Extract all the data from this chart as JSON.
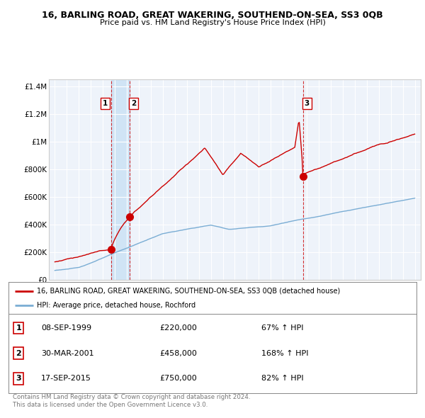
{
  "title": "16, BARLING ROAD, GREAT WAKERING, SOUTHEND-ON-SEA, SS3 0QB",
  "subtitle": "Price paid vs. HM Land Registry's House Price Index (HPI)",
  "red_label": "16, BARLING ROAD, GREAT WAKERING, SOUTHEND-ON-SEA, SS3 0QB (detached house)",
  "blue_label": "HPI: Average price, detached house, Rochford",
  "transactions": [
    {
      "num": 1,
      "date": "08-SEP-1999",
      "price": 220000,
      "pct": "67% ↑ HPI",
      "x": 1999.69
    },
    {
      "num": 2,
      "date": "30-MAR-2001",
      "price": 458000,
      "pct": "168% ↑ HPI",
      "x": 2001.25
    },
    {
      "num": 3,
      "date": "17-SEP-2015",
      "price": 750000,
      "pct": "82% ↑ HPI",
      "x": 2015.71
    }
  ],
  "footer": "Contains HM Land Registry data © Crown copyright and database right 2024.\nThis data is licensed under the Open Government Licence v3.0.",
  "ylim": [
    0,
    1450000
  ],
  "xlim": [
    1994.5,
    2025.5
  ],
  "yticks": [
    0,
    200000,
    400000,
    600000,
    800000,
    1000000,
    1200000,
    1400000
  ],
  "ylabels": [
    "£0",
    "£200K",
    "£400K",
    "£600K",
    "£800K",
    "£1M",
    "£1.2M",
    "£1.4M"
  ],
  "background_color": "#ffffff",
  "plot_bg_color": "#eef3fa",
  "grid_color": "#cccccc",
  "red_color": "#cc0000",
  "blue_color": "#7aadd4",
  "highlight_color": "#d0e4f5"
}
